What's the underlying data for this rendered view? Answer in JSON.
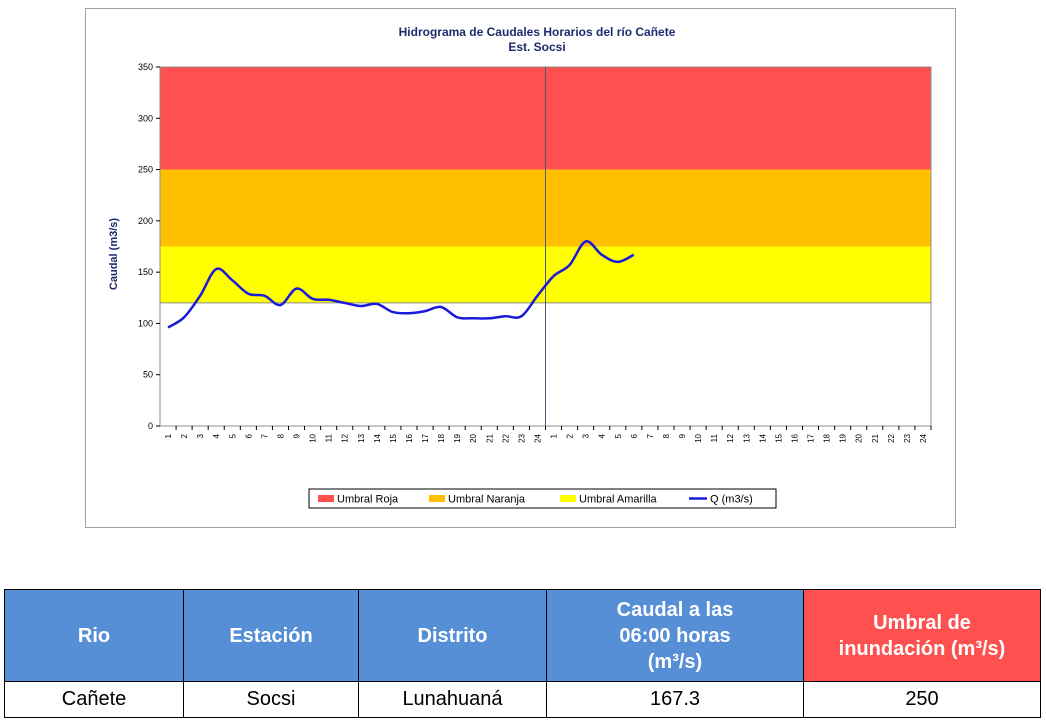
{
  "chart_data": {
    "type": "line",
    "title": "Hidrograma de Caudales Horarios del río Cañete",
    "subtitle": "Est. Socsi",
    "ylabel": "Caudal  (m3/s)",
    "xlabel": "",
    "ylim": [
      0,
      350
    ],
    "yticks": [
      "0",
      "50",
      "100",
      "150",
      "200",
      "250",
      "300",
      "350"
    ],
    "xticks": [
      "1",
      "2",
      "3",
      "4",
      "5",
      "6",
      "7",
      "8",
      "9",
      "10",
      "11",
      "12",
      "13",
      "14",
      "15",
      "16",
      "17",
      "18",
      "19",
      "20",
      "21",
      "22",
      "23",
      "24",
      "1",
      "2",
      "3",
      "4",
      "5",
      "6",
      "7",
      "8",
      "9",
      "10",
      "11",
      "12",
      "13",
      "14",
      "15",
      "16",
      "17",
      "18",
      "19",
      "20",
      "21",
      "22",
      "23",
      "24"
    ],
    "thresholds": [
      {
        "name": "Umbral Roja",
        "from": 250,
        "to": 350,
        "color": "#ff5050"
      },
      {
        "name": "Umbral Naranja",
        "from": 175,
        "to": 250,
        "color": "#ffc000"
      },
      {
        "name": "Umbral Amarilla",
        "from": 120,
        "to": 175,
        "color": "#ffff00"
      }
    ],
    "series": [
      {
        "name": "Q (m3/s)",
        "color": "#1a1adb",
        "x": [
          1,
          2,
          3,
          4,
          5,
          6,
          7,
          8,
          9,
          10,
          11,
          12,
          13,
          14,
          15,
          16,
          17,
          18,
          19,
          20,
          21,
          22,
          23,
          24,
          25,
          26,
          27,
          28,
          29,
          30
        ],
        "values": [
          96,
          106,
          127,
          153,
          142,
          129,
          127,
          118,
          134,
          124,
          123,
          120,
          117,
          119,
          111,
          110,
          112,
          116,
          106,
          105,
          105,
          107,
          107,
          127,
          146,
          157,
          180,
          167,
          160,
          167
        ]
      }
    ],
    "grid": false,
    "legend_position": "bottom"
  },
  "table": {
    "headers": [
      "Rio",
      "Estación",
      "Distrito",
      "Caudal a las 06:00 horas (m³/s)",
      "Umbral de inundación (m³/s)"
    ],
    "row": [
      "Cañete",
      "Socsi",
      "Lunahuaná",
      "167.3",
      "250"
    ]
  }
}
